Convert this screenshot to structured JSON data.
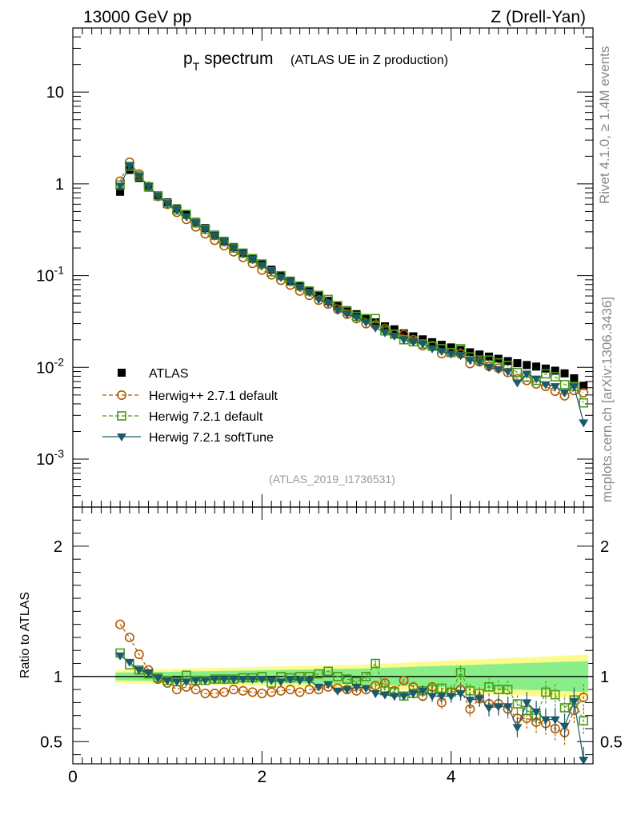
{
  "header": {
    "left": "13000 GeV pp",
    "right": "Z (Drell-Yan)"
  },
  "title": {
    "main": "p",
    "main_sub": "T",
    "main_rest": " spectrum",
    "small": "(ATLAS UE in Z production)"
  },
  "side_labels": {
    "top": "Rivet 4.1.0, ≥ 1.4M events",
    "bottom": "mcplots.cern.ch [arXiv:1306.3436]"
  },
  "analysis_id": "(ATLAS_2019_I1736531)",
  "ratio_ylabel": "Ratio to ATLAS",
  "colors": {
    "data": "#000000",
    "herwigpp": "#b35a00",
    "h721": "#4a9a1a",
    "soft": "#1a5a6a",
    "band_outer": "#fdfb8e",
    "band_inner": "#88ef88"
  },
  "legend": [
    {
      "name": "ATLAS",
      "marker": "square-filled"
    },
    {
      "name": "Herwig++ 2.7.1 default",
      "marker": "circle-open"
    },
    {
      "name": "Herwig 7.2.1 default",
      "marker": "square-open"
    },
    {
      "name": "Herwig 7.2.1 softTune",
      "marker": "triangle-down-filled"
    }
  ],
  "chart_data": [
    {
      "type": "scatter",
      "title": "pT spectrum (ATLAS UE in Z production)",
      "xlabel": "",
      "ylabel": "",
      "xlim": [
        0,
        5.5
      ],
      "ylim": [
        0.0003,
        50
      ],
      "yscale": "log",
      "y_tick_labels": [
        "10",
        "1",
        "10^-1",
        "10^-2",
        "10^-3"
      ],
      "x": [
        0.5,
        0.6,
        0.7,
        0.8,
        0.9,
        1.0,
        1.1,
        1.2,
        1.3,
        1.4,
        1.5,
        1.6,
        1.7,
        1.8,
        1.9,
        2.0,
        2.1,
        2.2,
        2.3,
        2.4,
        2.5,
        2.6,
        2.7,
        2.8,
        2.9,
        3.0,
        3.1,
        3.2,
        3.3,
        3.4,
        3.5,
        3.6,
        3.7,
        3.8,
        3.9,
        4.0,
        4.1,
        4.2,
        4.3,
        4.4,
        4.5,
        4.6,
        4.7,
        4.8,
        4.9,
        5.0,
        5.1,
        5.2,
        5.3,
        5.4
      ],
      "series": [
        {
          "name": "ATLAS",
          "values": [
            0.82,
            1.42,
            1.16,
            0.91,
            0.75,
            0.63,
            0.54,
            0.46,
            0.385,
            0.33,
            0.28,
            0.24,
            0.205,
            0.177,
            0.155,
            0.133,
            0.116,
            0.1,
            0.088,
            0.077,
            0.068,
            0.06,
            0.053,
            0.047,
            0.042,
            0.038,
            0.034,
            0.031,
            0.028,
            0.026,
            0.0235,
            0.0218,
            0.0202,
            0.0188,
            0.0176,
            0.0165,
            0.0155,
            0.0146,
            0.0138,
            0.0131,
            0.0124,
            0.0117,
            0.0111,
            0.0106,
            0.0102,
            0.0097,
            0.0092,
            0.0086,
            0.0076,
            0.0063
          ]
        },
        {
          "name": "Herwig++ 2.7.1 default",
          "values": [
            1.07,
            1.72,
            1.28,
            0.94,
            0.73,
            0.6,
            0.49,
            0.41,
            0.34,
            0.286,
            0.243,
            0.212,
            0.182,
            0.158,
            0.136,
            0.115,
            0.102,
            0.089,
            0.079,
            0.068,
            0.061,
            0.054,
            0.049,
            0.043,
            0.038,
            0.034,
            0.03,
            0.029,
            0.0265,
            0.023,
            0.0228,
            0.02,
            0.0172,
            0.0172,
            0.0141,
            0.0145,
            0.014,
            0.011,
            0.0115,
            0.0103,
            0.0098,
            0.0088,
            0.0075,
            0.0072,
            0.0066,
            0.0062,
            0.0055,
            0.0049,
            0.0056,
            0.0053
          ]
        },
        {
          "name": "Herwig 7.2.1 default",
          "values": [
            0.97,
            1.55,
            1.22,
            0.93,
            0.74,
            0.61,
            0.52,
            0.465,
            0.375,
            0.32,
            0.275,
            0.235,
            0.2,
            0.176,
            0.153,
            0.134,
            0.11,
            0.1,
            0.087,
            0.077,
            0.068,
            0.061,
            0.055,
            0.047,
            0.041,
            0.036,
            0.034,
            0.034,
            0.025,
            0.023,
            0.02,
            0.019,
            0.018,
            0.017,
            0.016,
            0.0145,
            0.016,
            0.013,
            0.012,
            0.012,
            0.0112,
            0.0105,
            0.0088,
            0.0078,
            0.0072,
            0.0085,
            0.0079,
            0.0065,
            0.0062,
            0.0041
          ]
        },
        {
          "name": "Herwig 7.2.1 softTune",
          "values": [
            0.95,
            1.58,
            1.22,
            0.94,
            0.74,
            0.61,
            0.52,
            0.44,
            0.375,
            0.32,
            0.275,
            0.235,
            0.2,
            0.174,
            0.152,
            0.13,
            0.113,
            0.096,
            0.086,
            0.075,
            0.066,
            0.055,
            0.05,
            0.042,
            0.038,
            0.035,
            0.031,
            0.027,
            0.024,
            0.022,
            0.02,
            0.019,
            0.018,
            0.016,
            0.015,
            0.014,
            0.0135,
            0.012,
            0.0115,
            0.01,
            0.0095,
            0.009,
            0.0068,
            0.0085,
            0.0075,
            0.0065,
            0.0062,
            0.0053,
            0.0062,
            0.0025
          ]
        }
      ]
    },
    {
      "type": "scatter",
      "title": "",
      "xlabel": "",
      "ylabel": "Ratio to ATLAS",
      "xlim": [
        0,
        5.5
      ],
      "ylim": [
        0.33,
        2.3
      ],
      "x_tick_labels": [
        "0",
        "2",
        "4"
      ],
      "y_tick_labels": [
        "0.5",
        "1",
        "2"
      ],
      "reference_line": 1,
      "band_outer_halfwidth": {
        "x": [
          0.5,
          3.0,
          5.5
        ],
        "values": [
          0.05,
          0.09,
          0.17
        ]
      },
      "band_inner_halfwidth": {
        "x": [
          0.5,
          3.0,
          5.5
        ],
        "values": [
          0.03,
          0.06,
          0.12
        ]
      },
      "x": [
        0.5,
        0.6,
        0.7,
        0.8,
        0.9,
        1.0,
        1.1,
        1.2,
        1.3,
        1.4,
        1.5,
        1.6,
        1.7,
        1.8,
        1.9,
        2.0,
        2.1,
        2.2,
        2.3,
        2.4,
        2.5,
        2.6,
        2.7,
        2.8,
        2.9,
        3.0,
        3.1,
        3.2,
        3.3,
        3.4,
        3.5,
        3.6,
        3.7,
        3.8,
        3.9,
        4.0,
        4.1,
        4.2,
        4.3,
        4.4,
        4.5,
        4.6,
        4.7,
        4.8,
        4.9,
        5.0,
        5.1,
        5.2,
        5.3,
        5.4
      ],
      "series": [
        {
          "name": "Herwig++ 2.7.1 default",
          "values": [
            1.4,
            1.3,
            1.17,
            1.05,
            0.98,
            0.95,
            0.9,
            0.92,
            0.9,
            0.87,
            0.87,
            0.88,
            0.9,
            0.89,
            0.88,
            0.87,
            0.88,
            0.89,
            0.9,
            0.88,
            0.9,
            0.9,
            0.92,
            0.91,
            0.9,
            0.89,
            0.9,
            0.93,
            0.95,
            0.89,
            0.97,
            0.92,
            0.85,
            0.92,
            0.8,
            0.88,
            0.9,
            0.75,
            0.83,
            0.79,
            0.79,
            0.75,
            0.68,
            0.68,
            0.65,
            0.64,
            0.6,
            0.57,
            0.74,
            0.84
          ]
        },
        {
          "name": "Herwig 7.2.1 default",
          "values": [
            1.18,
            1.09,
            1.05,
            1.02,
            0.99,
            0.97,
            0.96,
            1.01,
            0.97,
            0.97,
            0.98,
            0.98,
            0.98,
            0.99,
            0.99,
            1.0,
            0.95,
            1.0,
            0.99,
            1.0,
            1.0,
            1.02,
            1.04,
            1.0,
            0.98,
            0.96,
            1.0,
            1.1,
            0.89,
            0.88,
            0.85,
            0.87,
            0.89,
            0.9,
            0.91,
            0.88,
            1.03,
            0.89,
            0.87,
            0.92,
            0.9,
            0.9,
            0.79,
            0.74,
            0.7,
            0.88,
            0.86,
            0.76,
            0.82,
            0.66
          ]
        },
        {
          "name": "Herwig 7.2.1 softTune",
          "values": [
            1.16,
            1.11,
            1.05,
            1.03,
            0.99,
            0.97,
            0.96,
            0.96,
            0.97,
            0.97,
            0.98,
            0.98,
            0.98,
            0.98,
            0.98,
            0.98,
            0.97,
            0.96,
            0.98,
            0.97,
            0.97,
            0.92,
            0.94,
            0.89,
            0.9,
            0.92,
            0.91,
            0.87,
            0.86,
            0.85,
            0.85,
            0.87,
            0.89,
            0.85,
            0.85,
            0.85,
            0.87,
            0.82,
            0.83,
            0.76,
            0.77,
            0.77,
            0.61,
            0.8,
            0.73,
            0.67,
            0.67,
            0.62,
            0.81,
            0.36
          ]
        }
      ]
    }
  ]
}
